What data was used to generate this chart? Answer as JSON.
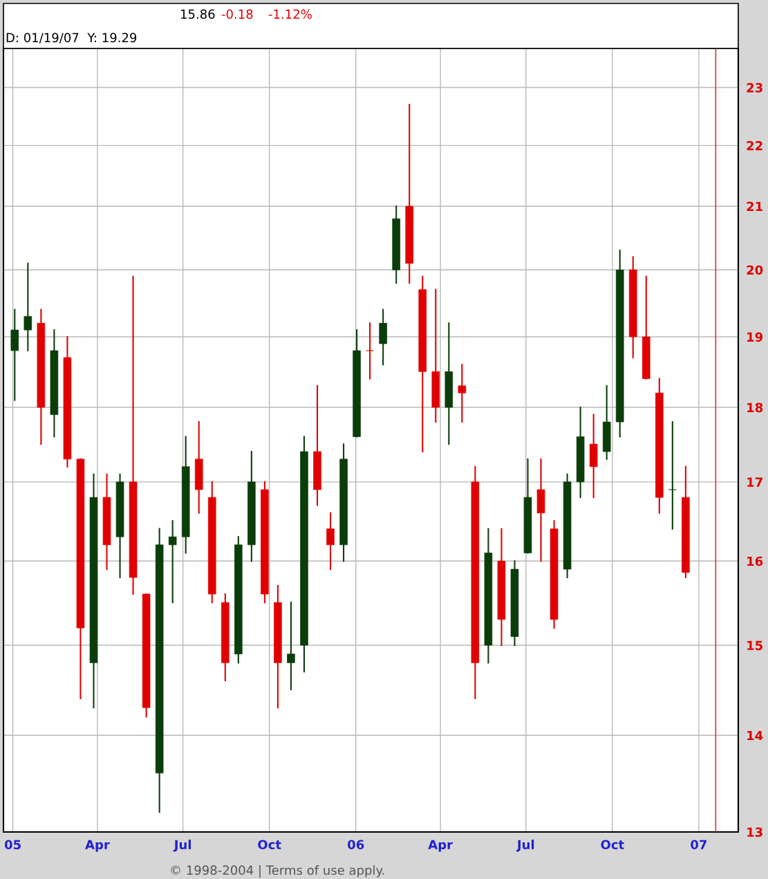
{
  "chart_data": {
    "type": "candlestick",
    "annotations": [
      "15.86",
      "-0.18",
      "-1.12%",
      "D: 01/19/07  Y: 19.29",
      "© 1998-2004 | Terms of use apply."
    ],
    "x": [
      "2005-01-03",
      "2005-01-17",
      "2005-01-31",
      "2005-02-14",
      "2005-02-28",
      "2005-03-14",
      "2005-03-28",
      "2005-04-11",
      "2005-04-25",
      "2005-05-09",
      "2005-05-23",
      "2005-06-06",
      "2005-06-20",
      "2005-07-04",
      "2005-07-18",
      "2005-08-01",
      "2005-08-15",
      "2005-08-29",
      "2005-09-12",
      "2005-09-26",
      "2005-10-10",
      "2005-10-24",
      "2005-11-07",
      "2005-11-21",
      "2005-12-05",
      "2005-12-19",
      "2006-01-02",
      "2006-01-16",
      "2006-01-30",
      "2006-02-13",
      "2006-02-27",
      "2006-03-13",
      "2006-03-27",
      "2006-04-10",
      "2006-04-24",
      "2006-05-08",
      "2006-05-22",
      "2006-06-05",
      "2006-06-19",
      "2006-07-03",
      "2006-07-17",
      "2006-07-31",
      "2006-08-14",
      "2006-08-28",
      "2006-09-11",
      "2006-09-25",
      "2006-10-09",
      "2006-10-23",
      "2006-11-06",
      "2006-11-20",
      "2006-12-04",
      "2006-12-18"
    ],
    "ohlc": [
      [
        18.8,
        19.4,
        18.1,
        19.1
      ],
      [
        19.1,
        20.1,
        18.8,
        19.3
      ],
      [
        19.2,
        19.4,
        17.5,
        18.0
      ],
      [
        17.9,
        19.1,
        17.6,
        18.8
      ],
      [
        18.7,
        19.0,
        17.2,
        17.3
      ],
      [
        17.3,
        17.3,
        14.4,
        15.2
      ],
      [
        14.8,
        17.1,
        14.3,
        16.8
      ],
      [
        16.8,
        17.1,
        15.9,
        16.2
      ],
      [
        16.3,
        17.1,
        15.8,
        17.0
      ],
      [
        17.0,
        19.9,
        15.6,
        15.8
      ],
      [
        15.6,
        15.6,
        14.2,
        14.3
      ],
      [
        13.6,
        16.4,
        13.2,
        16.2
      ],
      [
        16.2,
        16.5,
        15.5,
        16.3
      ],
      [
        16.3,
        17.6,
        16.1,
        17.2
      ],
      [
        17.3,
        17.8,
        16.6,
        16.9
      ],
      [
        16.8,
        17.0,
        15.5,
        15.6
      ],
      [
        15.5,
        15.6,
        14.6,
        14.8
      ],
      [
        14.9,
        16.3,
        14.8,
        16.2
      ],
      [
        16.2,
        17.4,
        16.0,
        17.0
      ],
      [
        16.9,
        17.0,
        15.5,
        15.6
      ],
      [
        15.5,
        15.7,
        14.3,
        14.8
      ],
      [
        14.8,
        15.5,
        14.5,
        14.9
      ],
      [
        15.0,
        17.6,
        14.7,
        17.4
      ],
      [
        17.4,
        18.3,
        16.7,
        16.9
      ],
      [
        16.4,
        16.6,
        15.9,
        16.2
      ],
      [
        16.2,
        17.5,
        16.0,
        17.3
      ],
      [
        17.6,
        19.1,
        17.6,
        18.8
      ],
      [
        18.8,
        19.2,
        18.4,
        18.8
      ],
      [
        18.9,
        19.4,
        18.6,
        19.2
      ],
      [
        20.0,
        21.0,
        19.8,
        20.8
      ],
      [
        21.0,
        22.7,
        19.8,
        20.1
      ],
      [
        19.7,
        19.9,
        17.4,
        18.5
      ],
      [
        18.5,
        19.7,
        17.8,
        18.0
      ],
      [
        18.0,
        19.2,
        17.5,
        18.5
      ],
      [
        18.3,
        18.6,
        17.8,
        18.2
      ],
      [
        17.0,
        17.2,
        14.4,
        14.8
      ],
      [
        15.0,
        16.4,
        14.8,
        16.1
      ],
      [
        16.0,
        16.4,
        15.0,
        15.3
      ],
      [
        15.1,
        16.0,
        15.0,
        15.9
      ],
      [
        16.1,
        17.3,
        16.1,
        16.8
      ],
      [
        16.9,
        17.3,
        16.0,
        16.6
      ],
      [
        16.4,
        16.5,
        15.2,
        15.3
      ],
      [
        15.9,
        17.1,
        15.8,
        17.0
      ],
      [
        17.0,
        18.0,
        16.8,
        17.6
      ],
      [
        17.5,
        17.9,
        16.8,
        17.2
      ],
      [
        17.4,
        18.3,
        17.3,
        17.8
      ],
      [
        17.8,
        20.3,
        17.6,
        20.0
      ],
      [
        20.0,
        20.2,
        18.7,
        19.0
      ],
      [
        19.0,
        19.9,
        18.4,
        18.4
      ],
      [
        18.2,
        18.4,
        16.6,
        16.8
      ],
      [
        16.9,
        17.8,
        16.4,
        16.9
      ],
      [
        16.8,
        17.2,
        15.8,
        15.86
      ]
    ],
    "colors": [
      "#0b3d0b",
      "#0b3d0b",
      "#e00000",
      "#0b3d0b",
      "#e00000",
      "#e00000",
      "#0b3d0b",
      "#e00000",
      "#0b3d0b",
      "#e00000",
      "#e00000",
      "#0b3d0b",
      "#0b3d0b",
      "#0b3d0b",
      "#e00000",
      "#e00000",
      "#e00000",
      "#0b3d0b",
      "#0b3d0b",
      "#e00000",
      "#e00000",
      "#0b3d0b",
      "#0b3d0b",
      "#e00000",
      "#e00000",
      "#0b3d0b",
      "#0b3d0b",
      "#e00000",
      "#0b3d0b",
      "#0b3d0b",
      "#e00000",
      "#e00000",
      "#e00000",
      "#0b3d0b",
      "#e00000",
      "#e00000",
      "#0b3d0b",
      "#e00000",
      "#0b3d0b",
      "#0b3d0b",
      "#e00000",
      "#e00000",
      "#0b3d0b",
      "#0b3d0b",
      "#e00000",
      "#0b3d0b",
      "#0b3d0b",
      "#e00000",
      "#e00000",
      "#e00000",
      "#0b3d0b",
      "#e00000"
    ],
    "log": "y",
    "xlim": [
      "2004-12-22",
      "2007-02-12"
    ],
    "xticks": [
      {
        "value": "2005-01-01",
        "label": "05"
      },
      {
        "value": "2005-04-01",
        "label": "Apr"
      },
      {
        "value": "2005-07-01",
        "label": "Jul"
      },
      {
        "value": "2005-10-01",
        "label": "Oct"
      },
      {
        "value": "2006-01-01",
        "label": "06"
      },
      {
        "value": "2006-04-01",
        "label": "Apr"
      },
      {
        "value": "2006-07-01",
        "label": "Jul"
      },
      {
        "value": "2006-10-01",
        "label": "Oct"
      },
      {
        "value": "2007-01-01",
        "label": "07"
      }
    ],
    "ylim": [
      13,
      23.7
    ],
    "yticks": [
      13,
      14,
      15,
      16,
      17,
      18,
      19,
      20,
      21,
      22,
      23
    ],
    "grid": true,
    "ref_lines": [
      {
        "axis": "x",
        "value": "2007-01-19",
        "color": "#e03030"
      }
    ]
  }
}
